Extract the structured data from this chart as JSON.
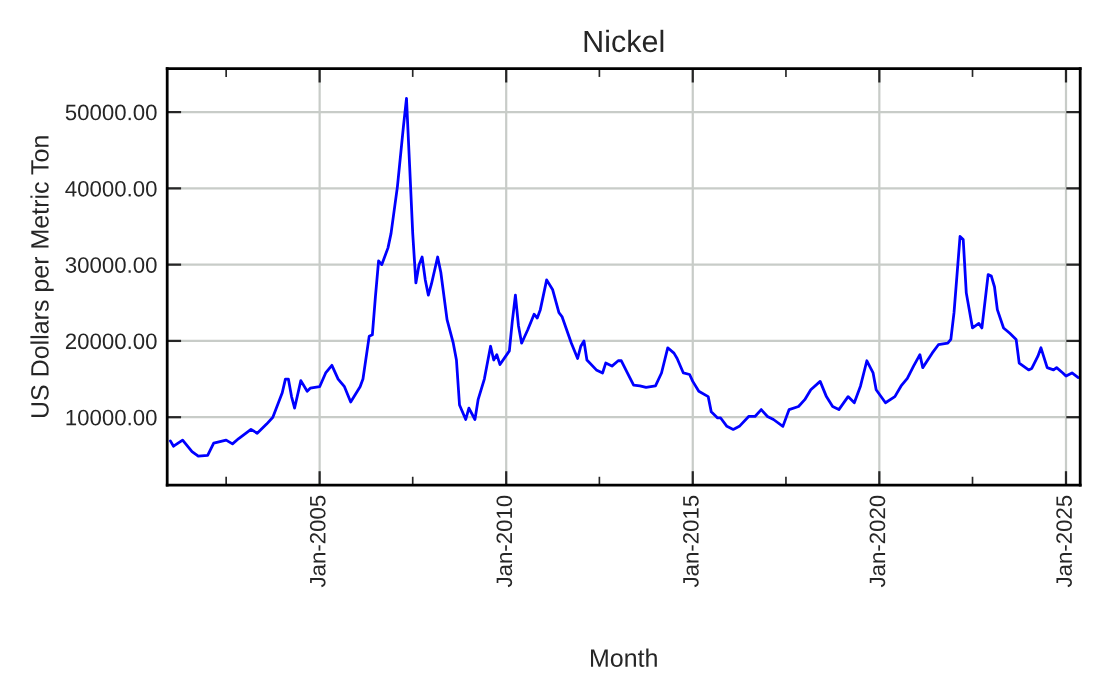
{
  "chart_data": {
    "type": "line",
    "title": "Nickel",
    "xlabel": "Month",
    "ylabel": "US Dollars per Metric Ton",
    "x": [
      "2001-01",
      "2001-02",
      "2001-05",
      "2001-08",
      "2001-10",
      "2002-01",
      "2002-03",
      "2002-07",
      "2002-09",
      "2002-11",
      "2003-03",
      "2003-05",
      "2003-08",
      "2003-10",
      "2004-01",
      "2004-02",
      "2004-03",
      "2004-04",
      "2004-05",
      "2004-07",
      "2004-09",
      "2004-10",
      "2005-01",
      "2005-03",
      "2005-05",
      "2005-07",
      "2005-09",
      "2005-11",
      "2006-02",
      "2006-03",
      "2006-05",
      "2006-06",
      "2006-07",
      "2006-08",
      "2006-09",
      "2006-11",
      "2006-12",
      "2007-02",
      "2007-04",
      "2007-05",
      "2007-06",
      "2007-07",
      "2007-08",
      "2007-09",
      "2007-10",
      "2007-11",
      "2007-12",
      "2008-01",
      "2008-03",
      "2008-04",
      "2008-06",
      "2008-08",
      "2008-09",
      "2008-10",
      "2008-12",
      "2009-01",
      "2009-03",
      "2009-04",
      "2009-06",
      "2009-08",
      "2009-09",
      "2009-10",
      "2009-11",
      "2010-02",
      "2010-03",
      "2010-04",
      "2010-05",
      "2010-06",
      "2010-08",
      "2010-10",
      "2010-11",
      "2010-12",
      "2011-02",
      "2011-04",
      "2011-06",
      "2011-07",
      "2011-10",
      "2011-12",
      "2012-01",
      "2012-02",
      "2012-03",
      "2012-06",
      "2012-08",
      "2012-09",
      "2012-11",
      "2013-01",
      "2013-02",
      "2013-04",
      "2013-06",
      "2013-08",
      "2013-10",
      "2014-01",
      "2014-03",
      "2014-05",
      "2014-07",
      "2014-08",
      "2014-10",
      "2014-12",
      "2015-01",
      "2015-03",
      "2015-06",
      "2015-07",
      "2015-09",
      "2015-10",
      "2015-12",
      "2016-02",
      "2016-04",
      "2016-07",
      "2016-09",
      "2016-11",
      "2017-01",
      "2017-03",
      "2017-06",
      "2017-08",
      "2017-11",
      "2018-01",
      "2018-03",
      "2018-06",
      "2018-08",
      "2018-10",
      "2018-12",
      "2019-03",
      "2019-05",
      "2019-07",
      "2019-09",
      "2019-11",
      "2019-12",
      "2020-03",
      "2020-06",
      "2020-08",
      "2020-10",
      "2020-12",
      "2021-02",
      "2021-03",
      "2021-06",
      "2021-08",
      "2021-11",
      "2021-12",
      "2022-01",
      "2022-03",
      "2022-04",
      "2022-05",
      "2022-07",
      "2022-09",
      "2022-10",
      "2022-12",
      "2023-01",
      "2023-02",
      "2023-03",
      "2023-05",
      "2023-07",
      "2023-09",
      "2023-10",
      "2024-01",
      "2024-02",
      "2024-04",
      "2024-05",
      "2024-07",
      "2024-09",
      "2024-10",
      "2024-12",
      "2025-01",
      "2025-03",
      "2025-05"
    ],
    "series": [
      {
        "color": "#0000ff",
        "values": [
          6900,
          6200,
          7000,
          5500,
          4900,
          5000,
          6600,
          7000,
          6500,
          7200,
          8400,
          7900,
          9100,
          10000,
          13200,
          15000,
          15000,
          12700,
          11200,
          14800,
          13400,
          13800,
          14000,
          15800,
          16800,
          15000,
          14000,
          12000,
          14000,
          15000,
          20600,
          20800,
          25800,
          30500,
          30000,
          32200,
          34100,
          40200,
          48100,
          51800,
          42900,
          34100,
          27600,
          30000,
          31000,
          28000,
          26000,
          27500,
          31000,
          29000,
          22800,
          19700,
          17500,
          11600,
          9700,
          11200,
          9700,
          12300,
          15000,
          19300,
          17500,
          18200,
          16900,
          18700,
          22500,
          26000,
          22000,
          19700,
          21500,
          23500,
          23000,
          24100,
          28000,
          26700,
          23700,
          23200,
          19700,
          17700,
          19300,
          20000,
          17500,
          16200,
          15800,
          17100,
          16700,
          17400,
          17400,
          15800,
          14200,
          14100,
          13900,
          14100,
          15800,
          19100,
          18400,
          17700,
          15800,
          15600,
          14700,
          13400,
          12700,
          10700,
          9900,
          9900,
          8800,
          8400,
          8800,
          10100,
          10100,
          11000,
          10100,
          9700,
          8800,
          11000,
          11400,
          12300,
          13600,
          14700,
          12700,
          11400,
          11000,
          12700,
          11900,
          14100,
          17400,
          15800,
          13600,
          11900,
          12700,
          14100,
          15100,
          16700,
          18200,
          16500,
          18400,
          19500,
          19700,
          20200,
          23700,
          33700,
          33300,
          26300,
          21700,
          22300,
          21700,
          28700,
          28500,
          27100,
          24100,
          21700,
          21000,
          20200,
          17100,
          16200,
          16400,
          18000,
          19100,
          16500,
          16200,
          16500,
          15800,
          15400,
          15800,
          15200
        ]
      }
    ],
    "xlim": [
      "2000-12-01",
      "2025-05-20"
    ],
    "xticks": [
      {
        "value": "2002-07-01",
        "label": null
      },
      {
        "value": "2005-01-01",
        "label": "Jan-2005"
      },
      {
        "value": "2007-07-01",
        "label": null
      },
      {
        "value": "2010-01-01",
        "label": "Jan-2010"
      },
      {
        "value": "2012-07-01",
        "label": null
      },
      {
        "value": "2015-01-01",
        "label": "Jan-2015"
      },
      {
        "value": "2017-07-01",
        "label": null
      },
      {
        "value": "2020-01-01",
        "label": "Jan-2020"
      },
      {
        "value": "2022-07-01",
        "label": null
      },
      {
        "value": "2025-01-01",
        "label": "Jan-2025"
      }
    ],
    "ylim": [
      1100,
      55700
    ],
    "yticks": [
      {
        "value": 10000,
        "label": "10000.00"
      },
      {
        "value": 20000,
        "label": "20000.00"
      },
      {
        "value": 30000,
        "label": "30000.00"
      },
      {
        "value": 40000,
        "label": "40000.00"
      },
      {
        "value": 50000,
        "label": "50000.00"
      }
    ],
    "grid": true,
    "legend": false,
    "marker": "none",
    "line_style": "solid"
  }
}
